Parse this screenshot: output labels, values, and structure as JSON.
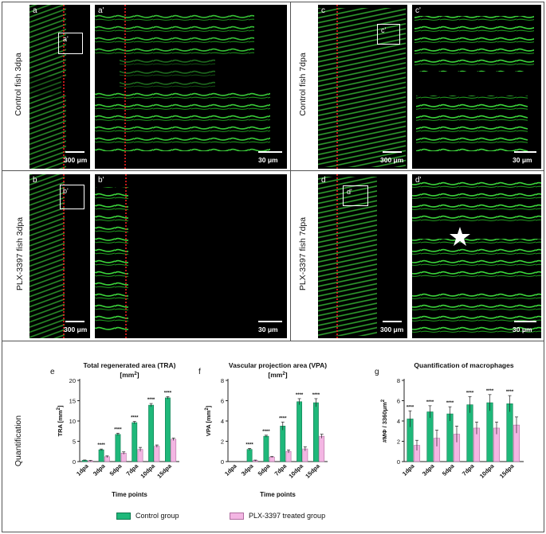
{
  "rows": {
    "row1_left": "Control fish 3dpa",
    "row1_right": "Control fish 7dpa",
    "row2_left": "PLX-3397  fish 3dpa",
    "row2_right": "PLX-3397 fish 7dpa",
    "row3": "Quantification"
  },
  "panels": {
    "a": {
      "letter": "a",
      "inset": "a'",
      "scale": "300 μm"
    },
    "a2": {
      "letter": "a'",
      "scale": "30 μm"
    },
    "b": {
      "letter": "b",
      "inset": "b'",
      "scale": "300 μm"
    },
    "b2": {
      "letter": "b'",
      "scale": "30 μm"
    },
    "c": {
      "letter": "c",
      "inset": "c'",
      "scale": "300 μm"
    },
    "c2": {
      "letter": "c'",
      "scale": "30 μm"
    },
    "d": {
      "letter": "d",
      "inset": "d'",
      "scale": "300 μm"
    },
    "d2": {
      "letter": "d'",
      "scale": "30 μm"
    }
  },
  "legend": {
    "control": "Control group",
    "plx": "PLX-3397 treated group",
    "control_color": "#1fb87a",
    "plx_color": "#f3b6e3"
  },
  "chart_data": [
    {
      "panel": "e",
      "type": "bar",
      "title": "Total regenerated area (TRA)",
      "subtitle": "[mm2]",
      "ylabel": "TRA [mm2]",
      "xlabel": "Time points",
      "categories": [
        "1dpa",
        "3dpa",
        "5dpa",
        "7dpa",
        "10dpa",
        "15dpa"
      ],
      "ylim": [
        0,
        20
      ],
      "yticks": [
        0,
        5,
        10,
        15,
        20
      ],
      "series": [
        {
          "name": "Control group",
          "values": [
            0.3,
            2.9,
            6.7,
            9.6,
            13.9,
            15.7
          ],
          "errors": [
            0.1,
            0.2,
            0.3,
            0.3,
            0.4,
            0.3
          ]
        },
        {
          "name": "PLX-3397 treated group",
          "values": [
            0.2,
            1.2,
            2.1,
            3.0,
            3.8,
            5.5
          ],
          "errors": [
            0.1,
            0.2,
            0.3,
            0.5,
            0.3,
            0.3
          ]
        }
      ],
      "annotations": [
        "",
        "****",
        "****",
        "****",
        "****",
        "****"
      ]
    },
    {
      "panel": "f",
      "type": "bar",
      "title": "Vascular projection area (VPA)",
      "subtitle": "[mm2]",
      "ylabel": "VPA [mm2]",
      "xlabel": "Time points",
      "categories": [
        "1dpa",
        "3dpa",
        "5dpa",
        "7dpa",
        "10dpa",
        "15dpa"
      ],
      "ylim": [
        0,
        8
      ],
      "yticks": [
        0,
        2,
        4,
        6,
        8
      ],
      "series": [
        {
          "name": "Control group",
          "values": [
            0,
            1.2,
            2.5,
            3.5,
            5.9,
            5.8
          ],
          "errors": [
            0,
            0.1,
            0.1,
            0.4,
            0.3,
            0.4
          ]
        },
        {
          "name": "PLX-3397 treated group",
          "values": [
            0,
            0.1,
            0.45,
            1.0,
            1.25,
            2.5
          ],
          "errors": [
            0,
            0.05,
            0.05,
            0.15,
            0.2,
            0.2
          ]
        }
      ],
      "annotations": [
        "",
        "****",
        "****",
        "****",
        "****",
        "****"
      ]
    },
    {
      "panel": "g",
      "type": "bar",
      "title": "Quantification of macrophages",
      "subtitle": "",
      "ylabel": "#MΦ / 3360μm2",
      "xlabel": "",
      "categories": [
        "1dpa",
        "3dpa",
        "5dpa",
        "7dpa",
        "10dpa",
        "15dpa"
      ],
      "ylim": [
        0,
        8
      ],
      "yticks": [
        0,
        2,
        4,
        6,
        8
      ],
      "series": [
        {
          "name": "Control group",
          "values": [
            4.2,
            4.9,
            4.7,
            5.6,
            5.8,
            5.7
          ],
          "errors": [
            0.8,
            0.6,
            0.7,
            0.8,
            0.8,
            0.8
          ]
        },
        {
          "name": "PLX-3397 treated group",
          "values": [
            1.6,
            2.3,
            2.7,
            3.3,
            3.3,
            3.6
          ],
          "errors": [
            0.5,
            0.8,
            0.8,
            0.6,
            0.6,
            0.8
          ]
        }
      ],
      "annotations": [
        "****",
        "****",
        "****",
        "****",
        "****",
        "****"
      ]
    }
  ]
}
